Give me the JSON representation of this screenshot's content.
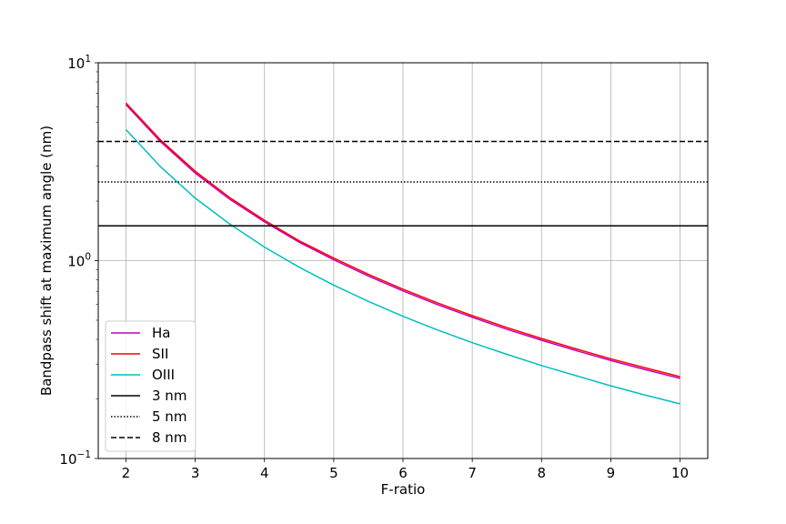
{
  "chart_data": {
    "type": "line",
    "xlabel": "F-ratio",
    "ylabel": "Bandpass shift at maximum angle (nm)",
    "xlim": [
      1.6,
      10.4
    ],
    "ylim": [
      0.1,
      10
    ],
    "yscale": "log",
    "grid": true,
    "legend_position": "lower-left",
    "x_ticks": [
      "2",
      "3",
      "4",
      "5",
      "6",
      "7",
      "8",
      "9",
      "10"
    ],
    "y_ticks": [
      {
        "value": 0.1,
        "base": "10",
        "exp": "−1"
      },
      {
        "value": 1,
        "base": "10",
        "exp": "0"
      },
      {
        "value": 10,
        "base": "10",
        "exp": "1"
      }
    ],
    "x": [
      2,
      2.5,
      3,
      3.5,
      4,
      4.5,
      5,
      5.5,
      6,
      6.5,
      7,
      7.5,
      8,
      8.5,
      9,
      9.5,
      10
    ],
    "series": [
      {
        "name": "Ha",
        "color": "#bf00bf",
        "style": "solid",
        "values": [
          6.14,
          3.99,
          2.77,
          2.04,
          1.57,
          1.24,
          1.01,
          0.836,
          0.703,
          0.599,
          0.517,
          0.45,
          0.396,
          0.351,
          0.313,
          0.281,
          0.254
        ]
      },
      {
        "name": "SII",
        "color": "#ff0000",
        "style": "solid",
        "values": [
          6.26,
          4.07,
          2.83,
          2.08,
          1.6,
          1.26,
          1.03,
          0.853,
          0.717,
          0.611,
          0.527,
          0.459,
          0.404,
          0.358,
          0.319,
          0.287,
          0.259
        ]
      },
      {
        "name": "OIII",
        "color": "#00bfbf",
        "style": "solid",
        "values": [
          4.6,
          2.98,
          2.07,
          1.53,
          1.17,
          0.927,
          0.752,
          0.622,
          0.523,
          0.446,
          0.385,
          0.336,
          0.295,
          0.262,
          0.233,
          0.209,
          0.189
        ]
      },
      {
        "name": "3 nm",
        "color": "#000000",
        "style": "solid",
        "constant": 1.5
      },
      {
        "name": "5 nm",
        "color": "#000000",
        "style": "dotted",
        "constant": 2.5
      },
      {
        "name": "8 nm",
        "color": "#000000",
        "style": "dashed",
        "constant": 4.0
      }
    ]
  }
}
